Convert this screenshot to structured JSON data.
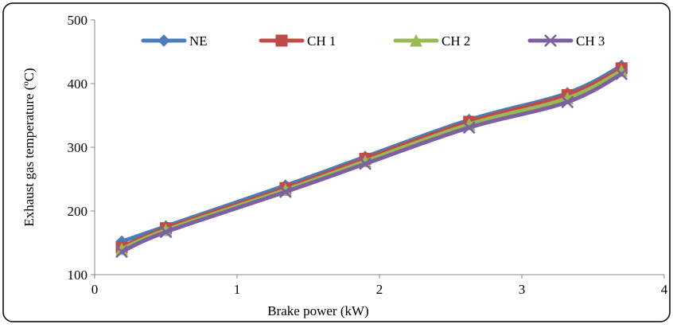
{
  "chart_data": {
    "type": "line",
    "xlabel": "Brake power (kW)",
    "ylabel": "Exhaust gas temperature (ºC)",
    "xlim": [
      0,
      4
    ],
    "ylim": [
      100,
      500
    ],
    "x_ticks": [
      "0",
      "1",
      "2",
      "3",
      "4"
    ],
    "y_ticks": [
      "100",
      "200",
      "300",
      "400",
      "500"
    ],
    "x": [
      0.19,
      0.5,
      1.34,
      1.9,
      2.63,
      3.32,
      3.7
    ],
    "grid": false,
    "legend_position": "top",
    "series": [
      {
        "name": "NE",
        "color": "#4a7ebb",
        "marker": "diamond",
        "values": [
          152,
          176,
          240,
          285,
          343,
          385,
          428
        ]
      },
      {
        "name": "CH 1",
        "color": "#be4b48",
        "marker": "square",
        "values": [
          143,
          173,
          236,
          282,
          340,
          382,
          424
        ]
      },
      {
        "name": "CH 2",
        "color": "#98b954",
        "marker": "triangle",
        "values": [
          140,
          170,
          233,
          278,
          336,
          377,
          420
        ]
      },
      {
        "name": "CH 3",
        "color": "#7d60a0",
        "marker": "x",
        "values": [
          136,
          167,
          230,
          274,
          331,
          371,
          415
        ]
      }
    ]
  }
}
